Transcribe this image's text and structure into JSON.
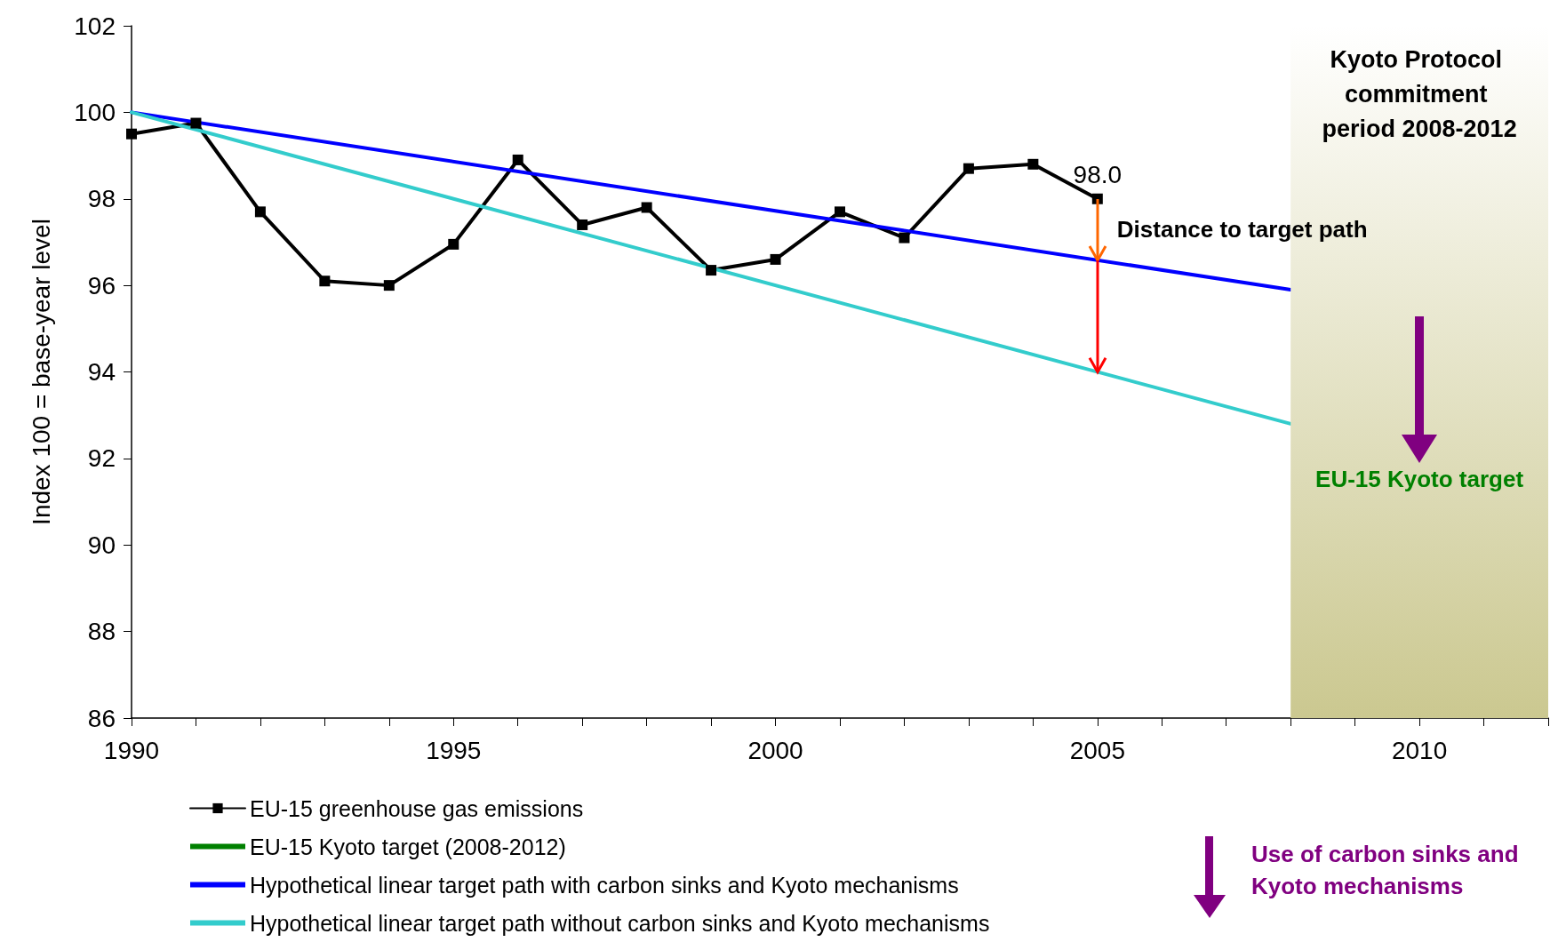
{
  "chart_data": {
    "type": "line",
    "ylabel": "Index 100 = base-year level",
    "xlim": [
      1990,
      2012
    ],
    "xticks": [
      1990,
      {
        "value": 1991,
        "label": null
      },
      {
        "value": 1992,
        "label": null
      },
      {
        "value": 1993,
        "label": null
      },
      {
        "value": 1994,
        "label": null
      },
      1995,
      {
        "value": 1996,
        "label": null
      },
      {
        "value": 1997,
        "label": null
      },
      {
        "value": 1998,
        "label": null
      },
      {
        "value": 1999,
        "label": null
      },
      2000,
      {
        "value": 2001,
        "label": null
      },
      {
        "value": 2002,
        "label": null
      },
      {
        "value": 2003,
        "label": null
      },
      {
        "value": 2004,
        "label": null
      },
      2005,
      {
        "value": 2006,
        "label": null
      },
      {
        "value": 2007,
        "label": null
      },
      {
        "value": 2008,
        "label": null
      },
      {
        "value": 2009,
        "label": null
      },
      2010,
      {
        "value": 2011,
        "label": null
      },
      {
        "value": 2012,
        "label": null
      }
    ],
    "ylim": [
      86,
      102
    ],
    "yticks": [
      86,
      88,
      90,
      92,
      94,
      96,
      98,
      100,
      102
    ],
    "grid": false,
    "legend": "bottom left",
    "series": [
      {
        "name": "EU-15 greenhouse gas emissions",
        "color": "#000000",
        "marker": "square",
        "x": [
          1990,
          1991,
          1992,
          1993,
          1994,
          1995,
          1996,
          1997,
          1998,
          1999,
          2000,
          2001,
          2002,
          2003,
          2004,
          2005
        ],
        "values": [
          99.5,
          99.75,
          97.7,
          96.1,
          96.0,
          96.95,
          98.9,
          97.4,
          97.8,
          96.35,
          96.6,
          97.7,
          97.1,
          98.7,
          98.8,
          98.0
        ],
        "value_labels": [
          null,
          null,
          null,
          null,
          null,
          null,
          null,
          null,
          null,
          null,
          null,
          null,
          null,
          null,
          null,
          "98.0"
        ]
      },
      {
        "name": "EU-15 Kyoto target (2008-2012)",
        "color": "#008000",
        "marker": "none"
      },
      {
        "name": "Hypothetical linear target path with carbon sinks and Kyoto mechanisms",
        "color": "#0000ff",
        "marker": "none",
        "x": [
          1990,
          2008
        ],
        "values": [
          100,
          95.9
        ]
      },
      {
        "name": "Hypothetical linear target path without carbon sinks and Kyoto mechanisms",
        "color": "#33cccc",
        "marker": "none",
        "x": [
          1990,
          2008
        ],
        "values": [
          100,
          92.8
        ]
      }
    ],
    "bands": [
      {
        "axis": "x",
        "from": 2008,
        "to": 2012,
        "label": "Kyoto Protocol commitment period 2008-2012",
        "color": "#cbc890"
      }
    ],
    "annotations": [
      {
        "text": "Distance to target path",
        "x": 2005,
        "y": 94.0
      },
      "EU-15 Kyoto target",
      "Use of carbon sinks and Kyoto mechanisms"
    ]
  }
}
